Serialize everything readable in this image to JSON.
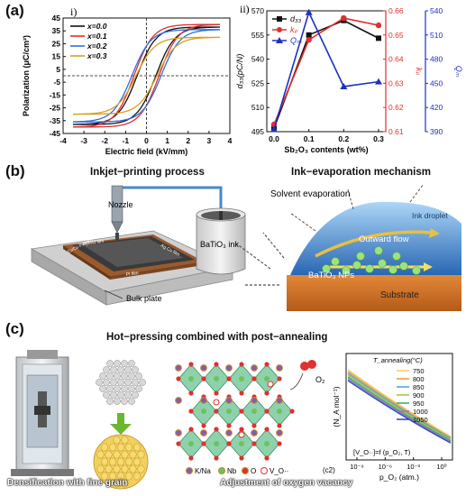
{
  "panels": {
    "a": {
      "label": "(a)"
    },
    "b": {
      "label": "(b)"
    },
    "c": {
      "label": "(c)"
    }
  },
  "chart_data": [
    {
      "id": "i",
      "type": "line",
      "panel_tag": "i)",
      "xlabel": "Electric field (kV/mm)",
      "ylabel": "Polarization (μC/cm²)",
      "xlim": [
        -4,
        4
      ],
      "ylim": [
        -45,
        45
      ],
      "xticks": [
        "-4",
        "-3",
        "-2",
        "-1",
        "0",
        "1",
        "2",
        "3",
        "4"
      ],
      "yticks": [
        "45",
        "35",
        "25",
        "15",
        "5",
        "-5",
        "-15",
        "-25",
        "-35",
        "-45"
      ],
      "series": [
        {
          "name": "x=0.0",
          "color": "#111111",
          "Ps": 38,
          "Pr": 18,
          "Ec": 0.45
        },
        {
          "name": "x=0.1",
          "color": "#e03030",
          "Ps": 40,
          "Pr": 23,
          "Ec": 0.6
        },
        {
          "name": "x=0.2",
          "color": "#3070e0",
          "Ps": 36,
          "Pr": 25,
          "Ec": 0.7
        },
        {
          "name": "x=0.3",
          "color": "#d9a020",
          "Ps": 30,
          "Pr": 14,
          "Ec": 0.5
        }
      ]
    },
    {
      "id": "ii",
      "type": "line",
      "panel_tag": "ii)",
      "xlabel": "Sb₂O₃ contents (wt%)",
      "x": [
        0.0,
        0.1,
        0.2,
        0.3
      ],
      "xticks": [
        "0.0",
        "0.1",
        "0.2",
        "0.3"
      ],
      "axes": {
        "left": {
          "label": "d₃₃(pC/N)",
          "ylim": [
            495,
            570
          ],
          "ticks": [
            "570",
            "555",
            "540",
            "525",
            "510",
            "495"
          ],
          "color": "#111111"
        },
        "right1": {
          "label": "kₚ",
          "ylim": [
            0.61,
            0.66
          ],
          "ticks": [
            "0.66",
            "0.65",
            "0.64",
            "0.63",
            "0.62",
            "0.61"
          ],
          "color": "#e03030"
        },
        "right2": {
          "label": "Qₘ",
          "ylim": [
            390,
            540
          ],
          "ticks": [
            "540",
            "510",
            "480",
            "450",
            "420",
            "390"
          ],
          "color": "#2030c0"
        }
      },
      "series": [
        {
          "name": "d₃₃",
          "axis": "left",
          "color": "#111111",
          "marker": "square",
          "values": [
            497,
            555,
            564,
            553
          ]
        },
        {
          "name": "kₚ",
          "axis": "right1",
          "color": "#e03030",
          "marker": "circle",
          "values": [
            0.613,
            0.648,
            0.657,
            0.654
          ]
        },
        {
          "name": "Qₘ",
          "axis": "right2",
          "color": "#2030c0",
          "marker": "triangle",
          "values": [
            393,
            538,
            446,
            452
          ]
        }
      ]
    },
    {
      "id": "c2",
      "type": "line",
      "panel_tag": "(c2)",
      "xlabel": "p_O₂ (atm.)",
      "ylabel": "(N_A mol⁻¹)",
      "xticks": [
        "10⁻⁹",
        "10⁻⁶",
        "10⁻³",
        "10⁰"
      ],
      "legend_title": "T_annealing(°C)",
      "equation": "[V_O··]=f (p_O₂, T)",
      "series": [
        {
          "name": "750",
          "color": "#f0d070"
        },
        {
          "name": "800",
          "color": "#e8a040"
        },
        {
          "name": "850",
          "color": "#50a8d0"
        },
        {
          "name": "900",
          "color": "#b0c050"
        },
        {
          "name": "950",
          "color": "#40b070"
        },
        {
          "name": "1000",
          "color": "#a070c0"
        },
        {
          "name": "1050",
          "color": "#3050c0"
        }
      ]
    }
  ],
  "panel_b": {
    "left_title": "Inkjet−printing process",
    "right_title": "Ink−evaporation mechanism",
    "nozzle": "Nozzle",
    "ink": "BaTiO₃ ink",
    "bulk_plate": "Bulk plate",
    "board_labels": [
      "Cr/Cu Pattern",
      "Hybrid film",
      "PI film",
      "Ag Cu film"
    ],
    "solvent": "Solvent evaporation",
    "droplet": "Ink droplet",
    "outward": "Outward flow",
    "nps": "BaTiO₃ NPs",
    "substrate": "Substrate"
  },
  "panel_c": {
    "title": "Hot−pressing combined with post−annealing",
    "caption_left": "Densification with fine grain",
    "caption_right": "Adjustment of oxygen vacancy",
    "o2": "O₂",
    "legend": [
      {
        "label": "K/Na",
        "color": "#8a5ab0"
      },
      {
        "label": "Nb",
        "color": "#70c060"
      },
      {
        "label": "O",
        "color": "#e03030"
      },
      {
        "label": "V_O··",
        "color": "#ffffff"
      }
    ]
  }
}
